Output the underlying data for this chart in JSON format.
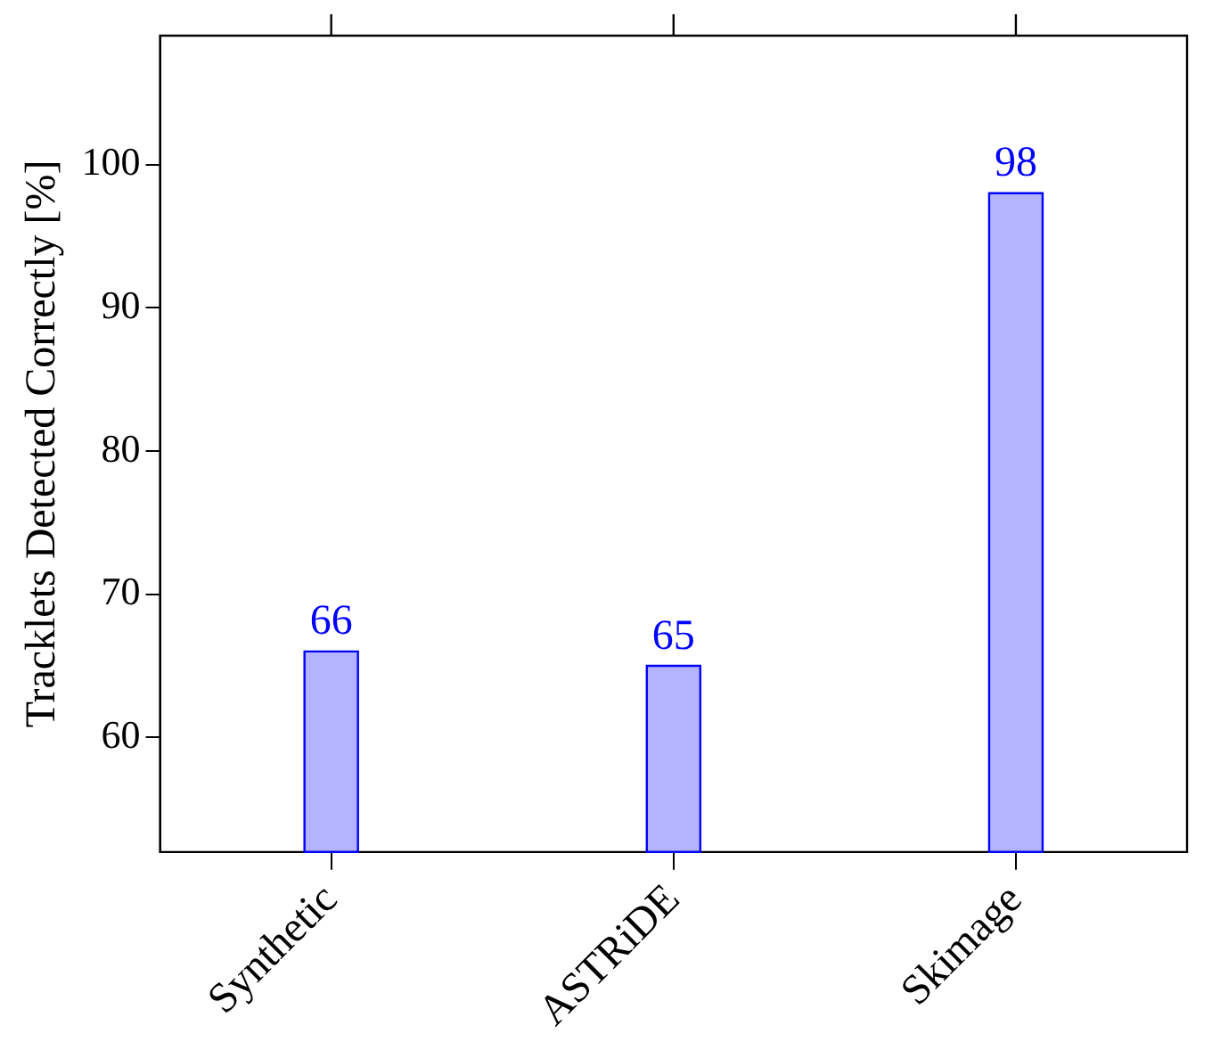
{
  "chart_data": {
    "type": "bar",
    "ylabel": "Tracklets Detected Correctly [%]",
    "categories": [
      "Synthetic",
      "ASTRiDE",
      "Skimage"
    ],
    "values": [
      66,
      65,
      98
    ],
    "color": "#b3b3ff",
    "ylim": [
      52,
      109
    ],
    "yticks": [
      60,
      70,
      80,
      90,
      100
    ],
    "data_labels": true
  }
}
